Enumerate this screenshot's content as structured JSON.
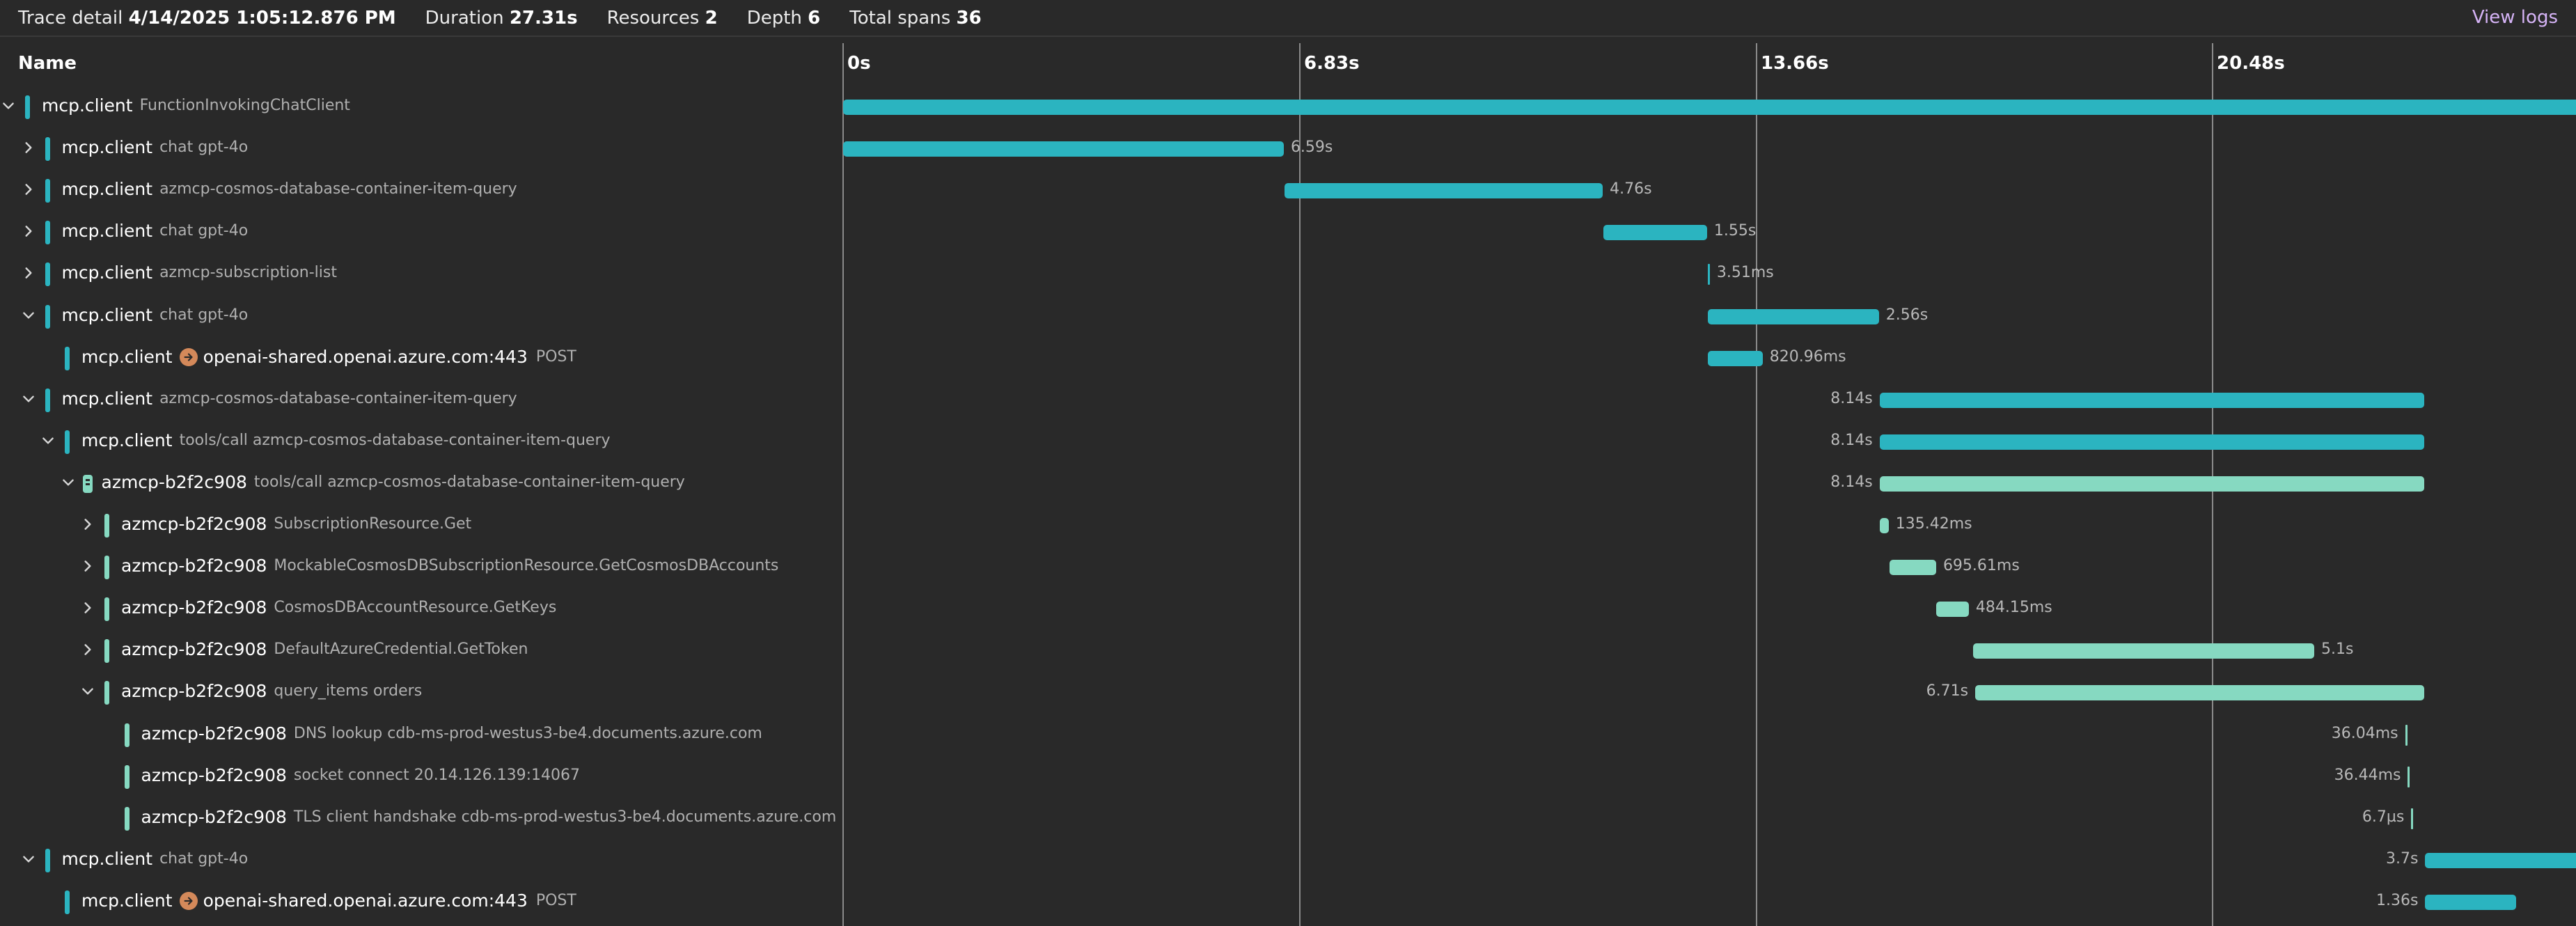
{
  "header": {
    "items": [
      {
        "label": "Trace detail",
        "value": "4/14/2025 1:05:12.876 PM"
      },
      {
        "label": "Duration",
        "value": "27.31s"
      },
      {
        "label": "Resources",
        "value": "2"
      },
      {
        "label": "Depth",
        "value": "6"
      },
      {
        "label": "Total spans",
        "value": "36"
      }
    ],
    "view_logs": "View logs"
  },
  "columns": {
    "name": "Name"
  },
  "timeline": {
    "ticks": [
      "0s",
      "6.83s",
      "13.66s",
      "20.48s"
    ],
    "tick_values_s": [
      0,
      6.83,
      13.66,
      20.48
    ],
    "total_s": 27.31
  },
  "colors": {
    "mcp": "#2bb4c0",
    "azmcp": "#86d9c1",
    "peer": "#d4895a",
    "background": "#292929"
  },
  "rows": [
    {
      "depth": 0,
      "toggle": "expanded",
      "service": "mcp.client",
      "operation": "FunctionInvokingChatClient",
      "start_s": 0,
      "duration_s": 27.31,
      "duration_label": "",
      "res": "mcp"
    },
    {
      "depth": 1,
      "toggle": "collapsed",
      "service": "mcp.client",
      "operation": "chat gpt-4o",
      "start_s": 0,
      "duration_s": 6.59,
      "duration_label": "6.59s",
      "res": "mcp"
    },
    {
      "depth": 1,
      "toggle": "collapsed",
      "service": "mcp.client",
      "operation": "azmcp-cosmos-database-container-item-query",
      "start_s": 6.6,
      "duration_s": 4.76,
      "duration_label": "4.76s",
      "res": "mcp"
    },
    {
      "depth": 1,
      "toggle": "collapsed",
      "service": "mcp.client",
      "operation": "chat gpt-4o",
      "start_s": 11.37,
      "duration_s": 1.55,
      "duration_label": "1.55s",
      "res": "mcp"
    },
    {
      "depth": 1,
      "toggle": "collapsed",
      "service": "mcp.client",
      "operation": "azmcp-subscription-list",
      "start_s": 12.93,
      "duration_s": 0.00351,
      "duration_label": "3.51ms",
      "res": "mcp"
    },
    {
      "depth": 1,
      "toggle": "expanded",
      "service": "mcp.client",
      "operation": "chat gpt-4o",
      "start_s": 12.93,
      "duration_s": 2.56,
      "duration_label": "2.56s",
      "res": "mcp"
    },
    {
      "depth": 2,
      "toggle": "none",
      "service": "mcp.client",
      "peer": "openai-shared.openai.azure.com:443",
      "method": "POST",
      "start_s": 12.93,
      "duration_s": 0.82096,
      "duration_label": "820.96ms",
      "res": "mcp"
    },
    {
      "depth": 1,
      "toggle": "expanded",
      "service": "mcp.client",
      "operation": "azmcp-cosmos-database-container-item-query",
      "start_s": 15.5,
      "duration_s": 8.14,
      "duration_label": "8.14s",
      "res": "mcp"
    },
    {
      "depth": 2,
      "toggle": "expanded",
      "service": "mcp.client",
      "operation": "tools/call azmcp-cosmos-database-container-item-query",
      "start_s": 15.5,
      "duration_s": 8.14,
      "duration_label": "8.14s",
      "res": "mcp"
    },
    {
      "depth": 3,
      "toggle": "expanded",
      "service": "azmcp-b2f2c908",
      "operation": "tools/call azmcp-cosmos-database-container-item-query",
      "start_s": 15.5,
      "duration_s": 8.14,
      "duration_label": "8.14s",
      "res": "azmcp",
      "server_icon": true
    },
    {
      "depth": 4,
      "toggle": "collapsed",
      "service": "azmcp-b2f2c908",
      "operation": "SubscriptionResource.Get",
      "start_s": 15.5,
      "duration_s": 0.13542,
      "duration_label": "135.42ms",
      "res": "azmcp"
    },
    {
      "depth": 4,
      "toggle": "collapsed",
      "service": "azmcp-b2f2c908",
      "operation": "MockableCosmosDBSubscriptionResource.GetCosmosDBAccounts",
      "start_s": 15.65,
      "duration_s": 0.69561,
      "duration_label": "695.61ms",
      "res": "azmcp"
    },
    {
      "depth": 4,
      "toggle": "collapsed",
      "service": "azmcp-b2f2c908",
      "operation": "CosmosDBAccountResource.GetKeys",
      "start_s": 16.35,
      "duration_s": 0.48415,
      "duration_label": "484.15ms",
      "res": "azmcp"
    },
    {
      "depth": 4,
      "toggle": "collapsed",
      "service": "azmcp-b2f2c908",
      "operation": "DefaultAzureCredential.GetToken",
      "start_s": 16.9,
      "duration_s": 5.1,
      "duration_label": "5.1s",
      "res": "azmcp"
    },
    {
      "depth": 4,
      "toggle": "expanded",
      "service": "azmcp-b2f2c908",
      "operation": "query_items orders",
      "start_s": 16.93,
      "duration_s": 6.71,
      "duration_label": "6.71s",
      "res": "azmcp"
    },
    {
      "depth": 5,
      "toggle": "none",
      "service": "azmcp-b2f2c908",
      "operation": "DNS lookup cdb-ms-prod-westus3-be4.documents.azure.com",
      "start_s": 23.36,
      "duration_s": 0.03604,
      "duration_label": "36.04ms",
      "res": "azmcp"
    },
    {
      "depth": 5,
      "toggle": "none",
      "service": "azmcp-b2f2c908",
      "operation": "socket connect 20.14.126.139:14067",
      "start_s": 23.4,
      "duration_s": 0.03644,
      "duration_label": "36.44ms",
      "res": "azmcp"
    },
    {
      "depth": 5,
      "toggle": "none",
      "service": "azmcp-b2f2c908",
      "operation": "TLS client handshake cdb-ms-prod-westus3-be4.documents.azure.com",
      "start_s": 23.45,
      "duration_s": 6.7e-06,
      "duration_label": "6.7µs",
      "res": "azmcp"
    },
    {
      "depth": 1,
      "toggle": "expanded",
      "service": "mcp.client",
      "operation": "chat gpt-4o",
      "start_s": 23.66,
      "duration_s": 3.7,
      "duration_label": "3.7s",
      "res": "mcp"
    },
    {
      "depth": 2,
      "toggle": "none",
      "service": "mcp.client",
      "peer": "openai-shared.openai.azure.com:443",
      "method": "POST",
      "start_s": 23.66,
      "duration_s": 1.36,
      "duration_label": "1.36s",
      "res": "mcp"
    }
  ]
}
